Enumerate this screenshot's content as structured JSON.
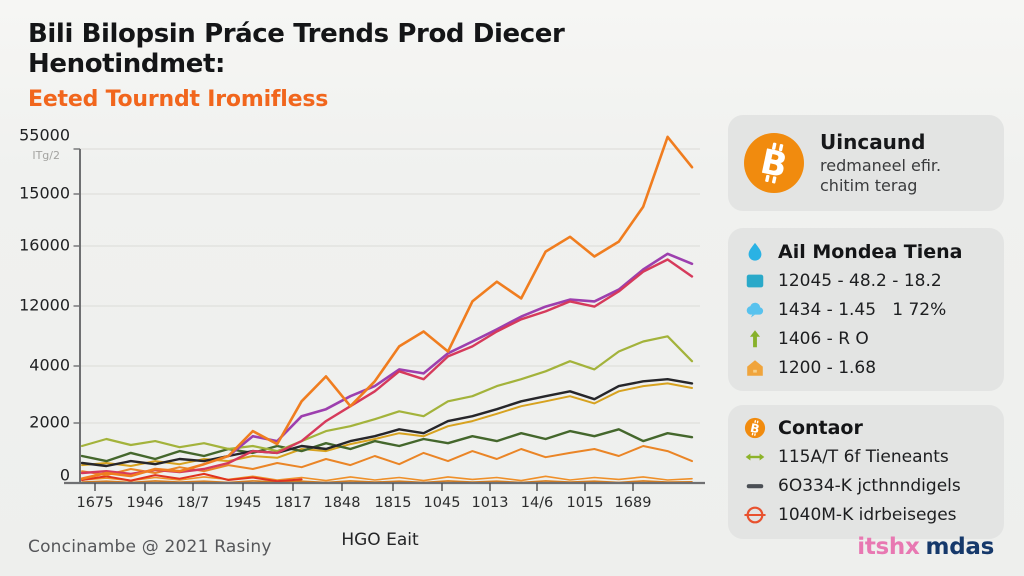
{
  "header": {
    "title": "Bili Bilopsin Práce Trends Prod Diecer Henotindmet:",
    "subtitle": "Eeted Tourndt Iromifless",
    "subtitle_color": "#f1661d"
  },
  "chart_data": {
    "type": "line",
    "title": "",
    "xlabel": "HGO Eait",
    "y_axis_note": "ITg/2",
    "y_tick_labels": [
      "55000",
      "15000",
      "16000",
      "12000",
      "4000",
      "2000",
      "0"
    ],
    "x_tick_labels": [
      "1675",
      "1946",
      "18/7",
      "1945",
      "1817",
      "1848",
      "1815",
      "1045",
      "1013",
      "14/6",
      "1015",
      "1689"
    ],
    "grid": true,
    "legend_position": "none",
    "note": "Axis tick labels are garbled AI text; series values estimated on a linear 0-55000 pixel scale of plot height.",
    "value_scale_max": 55000,
    "series": [
      {
        "name": "orange-flat-lower",
        "color": "#d97c18",
        "width": 1.6,
        "values": [
          150,
          300,
          100,
          350,
          150,
          300,
          100,
          350,
          150,
          300,
          100,
          350,
          150,
          300,
          100,
          350,
          150,
          300,
          100,
          350,
          150,
          300,
          100,
          350,
          150,
          200
        ]
      },
      {
        "name": "orange-flat-upper",
        "color": "#ef9029",
        "width": 1.6,
        "values": [
          500,
          800,
          400,
          900,
          500,
          1000,
          600,
          1100,
          500,
          900,
          400,
          1000,
          500,
          900,
          400,
          1000,
          600,
          900,
          400,
          1100,
          500,
          900,
          600,
          1000,
          500,
          700
        ]
      },
      {
        "name": "red-start",
        "color": "#e0331f",
        "width": 2,
        "values": [
          500,
          1100,
          400,
          1300,
          700,
          1500,
          500,
          900,
          300,
          600,
          null,
          null,
          null,
          null,
          null,
          null,
          null,
          null,
          null,
          null,
          null,
          null,
          null,
          null,
          null,
          null
        ]
      },
      {
        "name": "orange-mid",
        "color": "#ea8526",
        "width": 2,
        "values": [
          1950,
          1300,
          2300,
          1650,
          2600,
          1950,
          2950,
          2300,
          3300,
          2600,
          3950,
          2950,
          4450,
          3100,
          4950,
          3600,
          5250,
          3950,
          5600,
          4250,
          4950,
          5600,
          4450,
          6100,
          5250,
          3600
        ]
      },
      {
        "name": "gold",
        "color": "#d7a21f",
        "width": 2,
        "values": [
          2950,
          3300,
          2800,
          3600,
          3100,
          3950,
          3600,
          4450,
          4150,
          5600,
          5250,
          6400,
          7250,
          8200,
          7700,
          9350,
          10200,
          11400,
          12650,
          13450,
          14300,
          13100,
          15100,
          15950,
          16400,
          15650
        ]
      },
      {
        "name": "dark-green",
        "color": "#44672c",
        "width": 2.4,
        "values": [
          4450,
          3600,
          4950,
          3950,
          5250,
          4450,
          5600,
          4950,
          6100,
          5250,
          6550,
          5600,
          6900,
          6100,
          7250,
          6550,
          7700,
          6900,
          8200,
          7250,
          8550,
          7700,
          8850,
          6900,
          8200,
          7550
        ]
      },
      {
        "name": "black",
        "color": "#26262a",
        "width": 2.4,
        "values": [
          3300,
          2800,
          3600,
          3100,
          3950,
          3600,
          4450,
          5250,
          4950,
          6100,
          5600,
          6900,
          7700,
          8850,
          8200,
          10200,
          11000,
          12150,
          13450,
          14300,
          15100,
          13800,
          15950,
          16750,
          17100,
          16400
        ]
      },
      {
        "name": "olive",
        "color": "#a3b33b",
        "width": 2.2,
        "values": [
          6100,
          7250,
          6250,
          6900,
          5900,
          6550,
          5600,
          6100,
          5250,
          6900,
          8550,
          9350,
          10500,
          11800,
          11000,
          13450,
          14300,
          15950,
          17100,
          18400,
          20050,
          18700,
          21650,
          23300,
          24150,
          20050
        ]
      },
      {
        "name": "purple",
        "color": "#9d3fae",
        "width": 2.6,
        "values": [
          null,
          null,
          null,
          null,
          null,
          null,
          4450,
          7700,
          6900,
          11000,
          12150,
          14300,
          15950,
          18700,
          18050,
          21350,
          23300,
          25300,
          27400,
          29050,
          30200,
          29900,
          31850,
          35150,
          37750,
          36100
        ]
      },
      {
        "name": "crimson",
        "color": "#d63a5b",
        "width": 2.4,
        "values": [
          1650,
          1950,
          1500,
          2150,
          1800,
          2300,
          3300,
          5250,
          4950,
          6900,
          10200,
          12650,
          15100,
          18400,
          17100,
          20850,
          22500,
          24950,
          26950,
          28250,
          29900,
          29050,
          31550,
          34800,
          36800,
          34000
        ]
      },
      {
        "name": "orange-main",
        "color": "#f07d1f",
        "width": 2.6,
        "values": [
          700,
          1650,
          1150,
          2300,
          1950,
          3100,
          4450,
          8550,
          6400,
          13450,
          17550,
          12650,
          16750,
          22500,
          24950,
          21650,
          29900,
          33150,
          30400,
          38100,
          40550,
          37300,
          39750,
          45500,
          57000,
          52000
        ]
      }
    ]
  },
  "sidebar": {
    "profile_card": {
      "icon": "bitcoin",
      "title": "Uincaund",
      "line1": "redmaneel efir.",
      "line2": "chitim terag"
    },
    "stats_card": {
      "icon": "water-drop",
      "title": "Ail Mondea Tiena",
      "rows": [
        {
          "icon": "teal-square",
          "text": "12045 - 48.2 - 18.2"
        },
        {
          "icon": "cloud",
          "text": "1434 - 1.45   1 72%"
        },
        {
          "icon": "arrow-up",
          "text": "1406 - R O"
        },
        {
          "icon": "house",
          "text": "1200 - 1.68"
        }
      ]
    },
    "contaor_card": {
      "icon": "bitcoin-small",
      "title": "Contaor",
      "rows": [
        {
          "icon": "double-arrow",
          "text": "115A/T 6f Tieneants"
        },
        {
          "icon": "dash",
          "text": "6O334-K jcthnndigels"
        },
        {
          "icon": "circle-slash",
          "text": "1040M-K idrbeiseges"
        }
      ]
    }
  },
  "footer": {
    "left": "Concinambe @ 2021 Rasiny",
    "logo_pink": "itshx",
    "logo_navy": "mdas"
  },
  "colors": {
    "bitcoin_orange": "#f18b0e",
    "card_gray": "#e3e4e3",
    "background": "#f0f1ef",
    "logo_pink": "#e878b2",
    "logo_navy": "#16396b"
  }
}
